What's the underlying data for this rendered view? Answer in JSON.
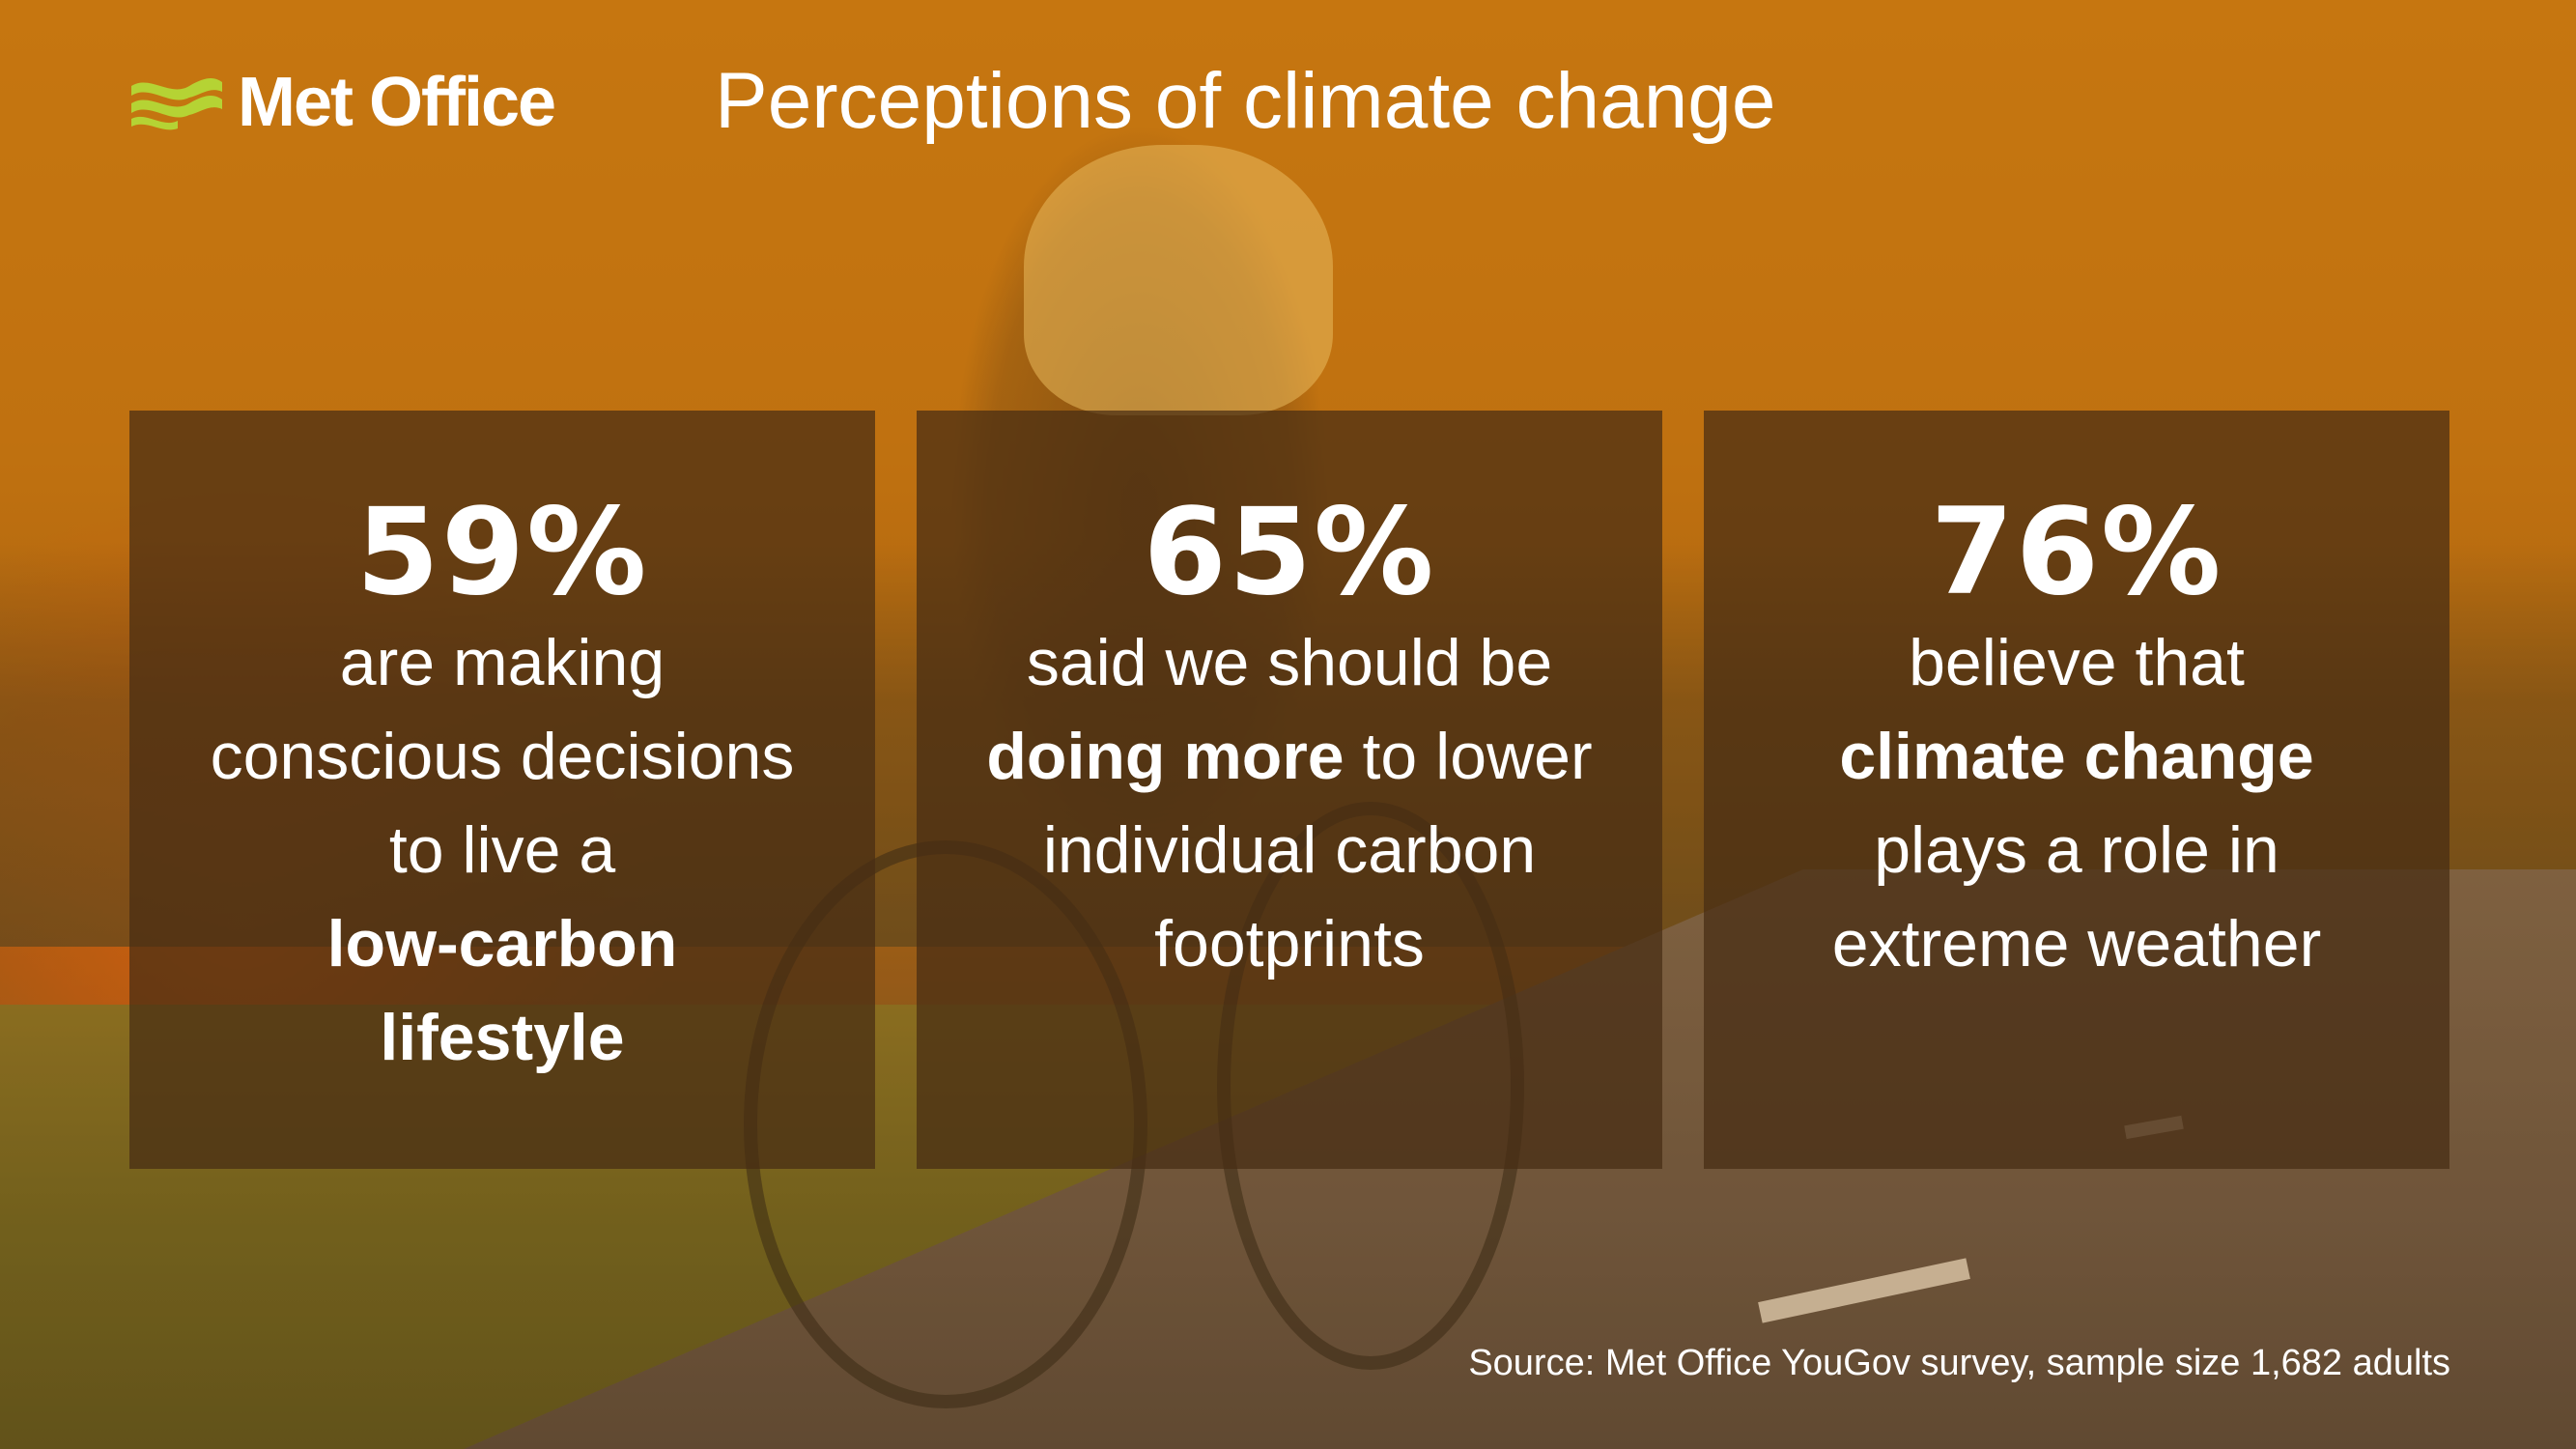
{
  "brand": {
    "name": "Met Office",
    "logo_icon": "met-office-waves-icon",
    "logo_color": "#b5d334"
  },
  "title": "Perceptions of climate change",
  "cards": [
    {
      "percent": "59%",
      "line1": "are making",
      "line2": "conscious decisions",
      "line3": "to live a",
      "bold1": "low-carbon",
      "bold2": "lifestyle"
    },
    {
      "percent": "65%",
      "line1": "said we should be",
      "bold": "doing more",
      "rest": " to lower",
      "line3": "individual carbon",
      "line4": "footprints"
    },
    {
      "percent": "76%",
      "line1": "believe that",
      "bold": "climate change",
      "line3": "plays a role in",
      "line4": "extreme weather"
    }
  ],
  "source": "Source: Met Office YouGov survey, sample size 1,682 adults",
  "colors": {
    "card_bg": "#462d14",
    "text": "#ffffff",
    "accent_orange": "#c6760f"
  }
}
